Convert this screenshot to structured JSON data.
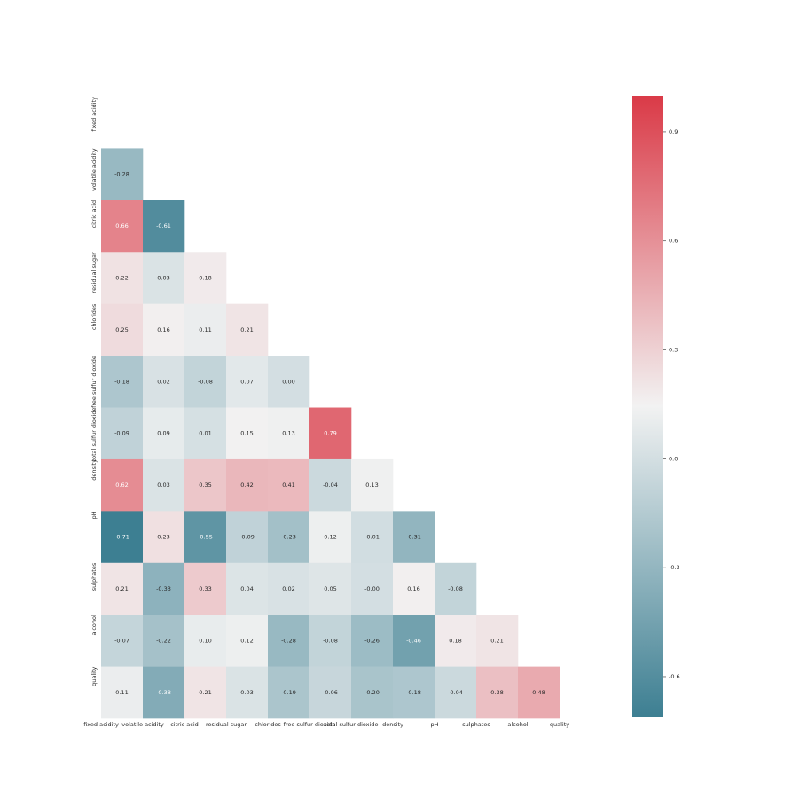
{
  "chart_data": {
    "type": "heatmap",
    "categories": [
      "fixed acidity",
      "volatile acidity",
      "citric acid",
      "residual sugar",
      "chlorides",
      "free sulfur dioxide",
      "total sulfur dioxide",
      "density",
      "pH",
      "sulphates",
      "alcohol",
      "quality"
    ],
    "values": [
      [
        null,
        null,
        null,
        null,
        null,
        null,
        null,
        null,
        null,
        null,
        null,
        null
      ],
      [
        -0.28,
        null,
        null,
        null,
        null,
        null,
        null,
        null,
        null,
        null,
        null,
        null
      ],
      [
        0.66,
        -0.61,
        null,
        null,
        null,
        null,
        null,
        null,
        null,
        null,
        null,
        null
      ],
      [
        0.22,
        0.03,
        0.18,
        null,
        null,
        null,
        null,
        null,
        null,
        null,
        null,
        null
      ],
      [
        0.25,
        0.16,
        0.11,
        0.21,
        null,
        null,
        null,
        null,
        null,
        null,
        null,
        null
      ],
      [
        -0.18,
        0.02,
        -0.08,
        0.07,
        0,
        null,
        null,
        null,
        null,
        null,
        null,
        null
      ],
      [
        -0.09,
        0.09,
        0.01,
        0.15,
        0.13,
        0.79,
        null,
        null,
        null,
        null,
        null,
        null
      ],
      [
        0.62,
        0.03,
        0.35,
        0.42,
        0.41,
        -0.04,
        0.13,
        null,
        null,
        null,
        null,
        null
      ],
      [
        -0.71,
        0.23,
        -0.55,
        -0.09,
        -0.23,
        0.12,
        -0.01,
        -0.31,
        null,
        null,
        null,
        null
      ],
      [
        0.21,
        -0.33,
        0.33,
        0.04,
        0.02,
        0.05,
        0,
        0.16,
        -0.08,
        null,
        null,
        null
      ],
      [
        -0.07,
        -0.22,
        0.1,
        0.12,
        -0.28,
        -0.08,
        -0.26,
        -0.46,
        0.18,
        0.21,
        null,
        null
      ],
      [
        0.11,
        -0.38,
        0.21,
        0.03,
        -0.19,
        -0.06,
        -0.2,
        -0.18,
        -0.04,
        0.38,
        0.48,
        null
      ]
    ],
    "value_labels": [
      [
        null,
        null,
        null,
        null,
        null,
        null,
        null,
        null,
        null,
        null,
        null,
        null
      ],
      [
        "-0.28",
        null,
        null,
        null,
        null,
        null,
        null,
        null,
        null,
        null,
        null,
        null
      ],
      [
        "0.66",
        "-0.61",
        null,
        null,
        null,
        null,
        null,
        null,
        null,
        null,
        null,
        null
      ],
      [
        "0.22",
        "0.03",
        "0.18",
        null,
        null,
        null,
        null,
        null,
        null,
        null,
        null,
        null
      ],
      [
        "0.25",
        "0.16",
        "0.11",
        "0.21",
        null,
        null,
        null,
        null,
        null,
        null,
        null,
        null
      ],
      [
        "-0.18",
        "0.02",
        "-0.08",
        "0.07",
        "0.00",
        null,
        null,
        null,
        null,
        null,
        null,
        null
      ],
      [
        "-0.09",
        "0.09",
        "0.01",
        "0.15",
        "0.13",
        "0.79",
        null,
        null,
        null,
        null,
        null,
        null
      ],
      [
        "0.62",
        "0.03",
        "0.35",
        "0.42",
        "0.41",
        "-0.04",
        "0.13",
        null,
        null,
        null,
        null,
        null
      ],
      [
        "-0.71",
        "0.23",
        "-0.55",
        "-0.09",
        "-0.23",
        "0.12",
        "-0.01",
        "-0.31",
        null,
        null,
        null,
        null
      ],
      [
        "0.21",
        "-0.33",
        "0.33",
        "0.04",
        "0.02",
        "0.05",
        "-0.00",
        "0.16",
        "-0.08",
        null,
        null,
        null
      ],
      [
        "-0.07",
        "-0.22",
        "0.10",
        "0.12",
        "-0.28",
        "-0.08",
        "-0.26",
        "-0.46",
        "0.18",
        "0.21",
        null,
        null
      ],
      [
        "0.11",
        "-0.38",
        "0.21",
        "0.03",
        "-0.19",
        "-0.06",
        "-0.20",
        "-0.18",
        "-0.04",
        "0.38",
        "0.48",
        null
      ]
    ],
    "colors": [
      "#3d7f92",
      "#f2f2f2",
      "#da3a47"
    ],
    "clim": [
      -0.71,
      1.0
    ],
    "cticks": [
      -0.6,
      -0.3,
      {
        "value": 0,
        "label": "0.0"
      },
      0.3,
      0.6,
      0.9
    ]
  }
}
